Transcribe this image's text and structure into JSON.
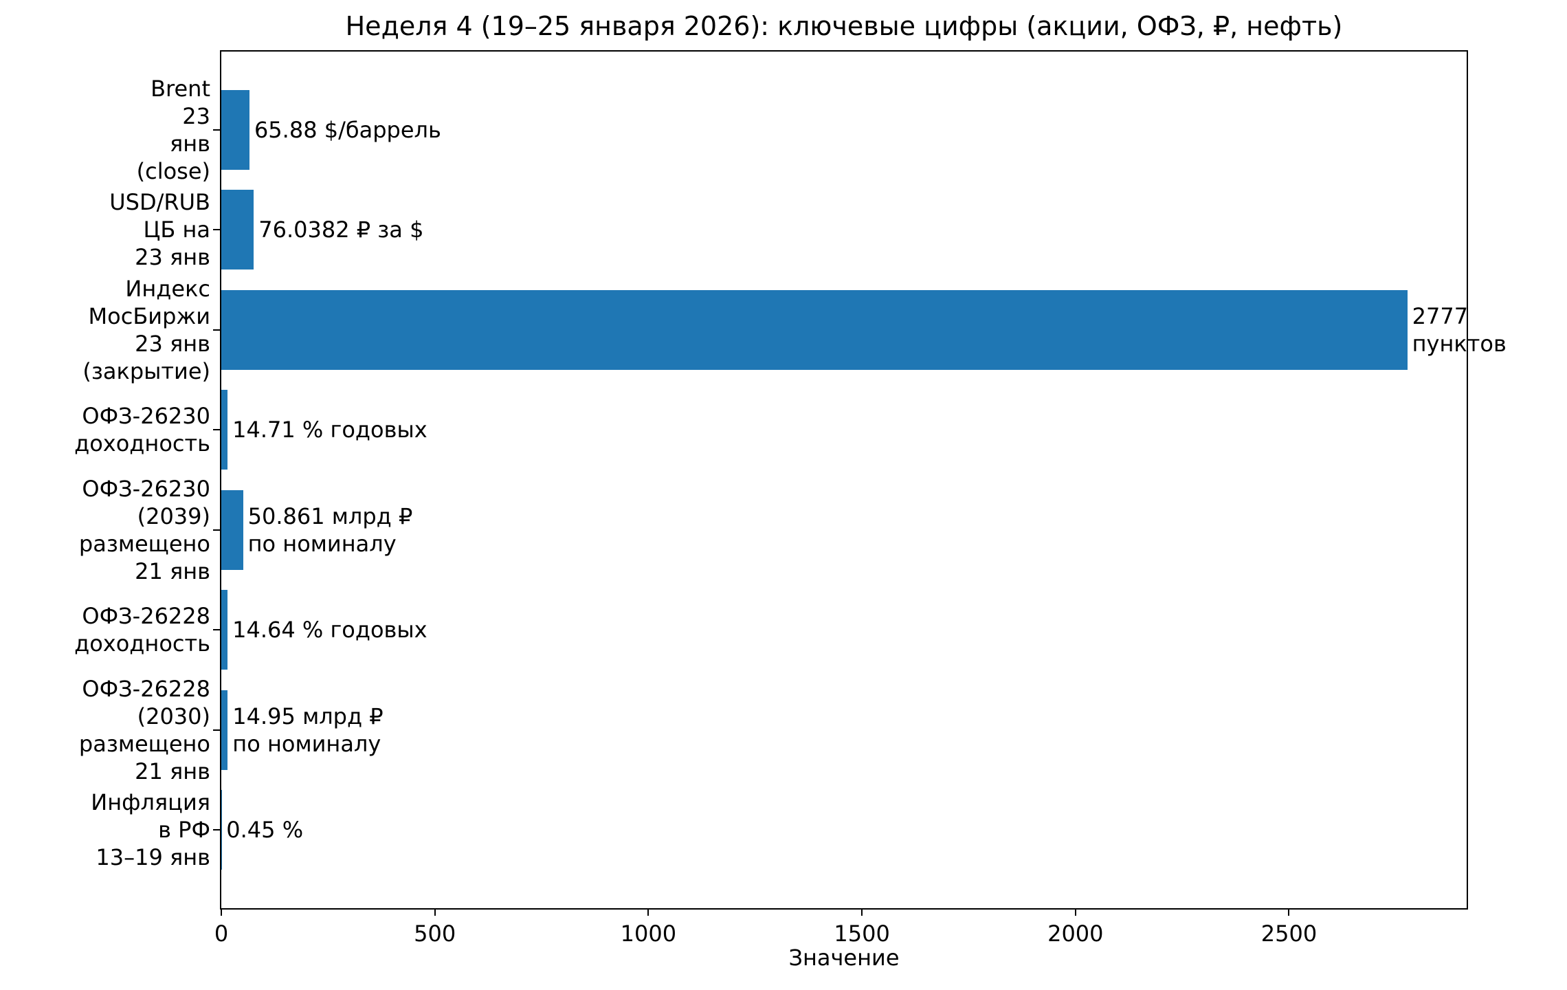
{
  "chart_data": {
    "type": "bar",
    "orientation": "horizontal",
    "title": "Неделя 4 (19–25 января 2026): ключевые цифры (акции, ОФЗ, ₽, нефть)",
    "xlabel": "Значение",
    "categories": [
      "Brent\n23 янв (close)",
      "USD/RUB\nЦБ на 23 янв",
      "Индекс МосБиржи\n23 янв (закрытие)",
      "ОФЗ-26230\nдоходность",
      "ОФЗ-26230 (2039)\nразмещено 21 янв",
      "ОФЗ-26228\nдоходность",
      "ОФЗ-26228 (2030)\nразмещено 21 янв",
      "Инфляция в РФ\n13–19 янв"
    ],
    "values": [
      65.88,
      76.0382,
      2777,
      14.71,
      50.861,
      14.64,
      14.95,
      0.45
    ],
    "value_labels": [
      "65.88 $/баррель",
      "76.0382 ₽ за $",
      "2777 пунктов",
      "14.71 % годовых",
      "50.861 млрд ₽\nпо номиналу",
      "14.64 % годовых",
      "14.95 млрд ₽\nпо номиналу",
      "0.45 %"
    ],
    "xticks": [
      0,
      500,
      1000,
      1500,
      2000,
      2500
    ],
    "xlim": [
      0,
      2916
    ],
    "bar_color": "#1f77b4",
    "grid": false,
    "legend": null
  }
}
